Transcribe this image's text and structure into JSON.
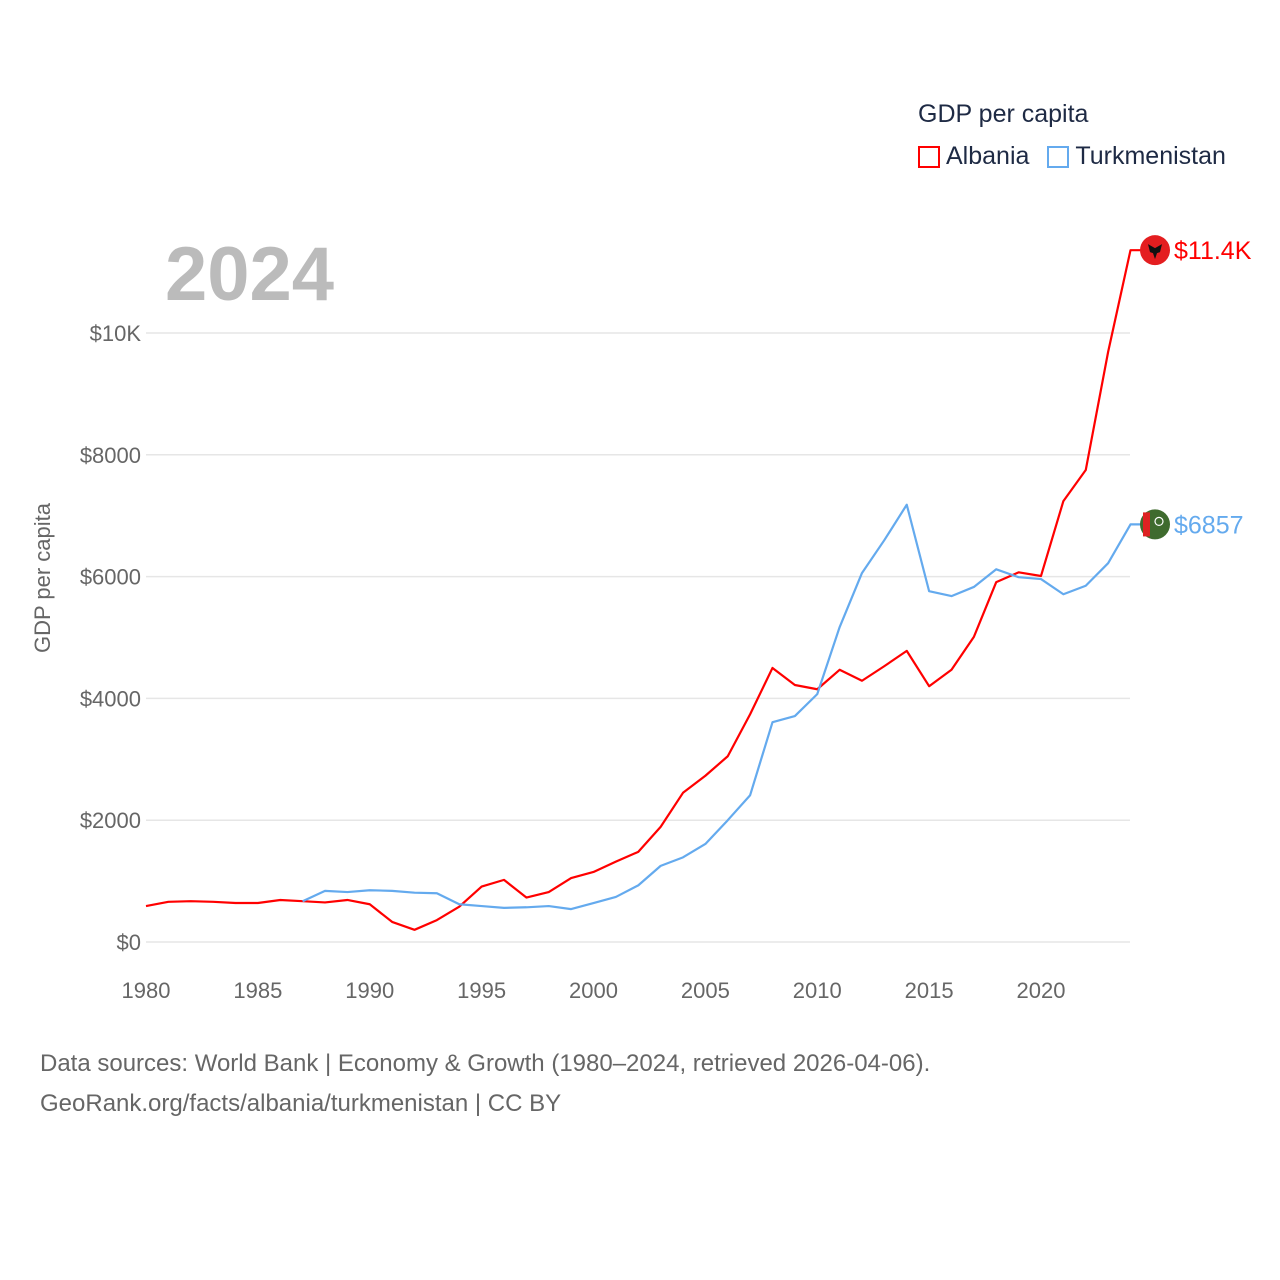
{
  "chart_data": {
    "type": "line",
    "title": "GDP per capita",
    "year_label": "2024",
    "ylabel": "GDP per capita",
    "xlabel": "",
    "xlim": [
      1980,
      2024
    ],
    "ylim": [
      0,
      10000
    ],
    "x_ticks": [
      1980,
      1985,
      1990,
      1995,
      2000,
      2005,
      2010,
      2015,
      2020
    ],
    "y_ticks": [
      {
        "v": 0,
        "label": "$0"
      },
      {
        "v": 2000,
        "label": "$2000"
      },
      {
        "v": 4000,
        "label": "$4000"
      },
      {
        "v": 6000,
        "label": "$6000"
      },
      {
        "v": 8000,
        "label": "$8000"
      },
      {
        "v": 10000,
        "label": "$10K"
      }
    ],
    "grid": true,
    "legend_position": "top-right",
    "series": [
      {
        "name": "Albania",
        "color": "#ff0000",
        "end_label": "$11.4K",
        "flag": "albania-flag",
        "x": [
          1980,
          1981,
          1982,
          1983,
          1984,
          1985,
          1986,
          1987,
          1988,
          1989,
          1990,
          1991,
          1992,
          1993,
          1994,
          1995,
          1996,
          1997,
          1998,
          1999,
          2000,
          2001,
          2002,
          2003,
          2004,
          2005,
          2006,
          2007,
          2008,
          2009,
          2010,
          2011,
          2012,
          2013,
          2014,
          2015,
          2016,
          2017,
          2018,
          2019,
          2020,
          2021,
          2022,
          2023,
          2024
        ],
        "values": [
          590,
          660,
          670,
          660,
          640,
          640,
          690,
          670,
          650,
          690,
          620,
          330,
          200,
          360,
          580,
          910,
          1020,
          730,
          820,
          1050,
          1150,
          1320,
          1480,
          1890,
          2450,
          2730,
          3050,
          3740,
          4500,
          4220,
          4150,
          4470,
          4290,
          4530,
          4780,
          4200,
          4470,
          5010,
          5910,
          6070,
          6010,
          7240,
          7750,
          9690,
          11360
        ]
      },
      {
        "name": "Turkmenistan",
        "color": "#64aaee",
        "end_label": "$6857",
        "flag": "turkmenistan-flag",
        "x": [
          1987,
          1988,
          1989,
          1990,
          1991,
          1992,
          1993,
          1994,
          1995,
          1996,
          1997,
          1998,
          1999,
          2000,
          2001,
          2002,
          2003,
          2004,
          2005,
          2006,
          2007,
          2008,
          2009,
          2010,
          2011,
          2012,
          2013,
          2014,
          2015,
          2016,
          2017,
          2018,
          2019,
          2020,
          2021,
          2022,
          2023,
          2024
        ],
        "values": [
          670,
          840,
          820,
          850,
          840,
          810,
          800,
          620,
          590,
          560,
          570,
          590,
          540,
          640,
          740,
          930,
          1250,
          1390,
          1610,
          2000,
          2410,
          3610,
          3710,
          4070,
          5170,
          6060,
          6600,
          7180,
          5760,
          5680,
          5830,
          6120,
          5990,
          5960,
          5710,
          5850,
          6220,
          6857
        ]
      }
    ]
  },
  "footer": {
    "line1": "Data sources: World Bank | Economy & Growth (1980–2024, retrieved 2026-04-06).",
    "line2": "GeoRank.org/facts/albania/turkmenistan | CC BY"
  }
}
